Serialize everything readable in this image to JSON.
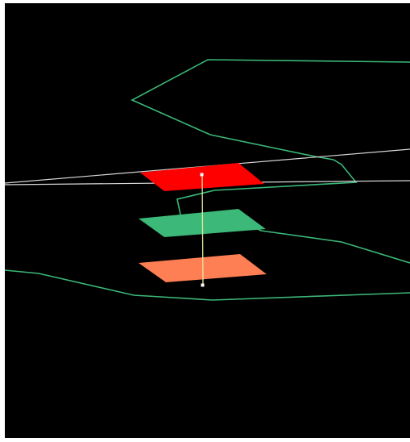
{
  "scene": {
    "background_color": "#000000",
    "frame_color": "#ffffff",
    "colors": {
      "boundary_line": "#3cb878",
      "reference_line": "#d8d8d8",
      "top_plane": "#ff0000",
      "middle_plane": "#3cb878",
      "bottom_plane": "#ff7f55",
      "vertical_connector": "#e8e8a0",
      "marker": "#ffffff"
    },
    "elements": {
      "upper_boundary": "green-outline-polyline",
      "middle_boundary": "green-outline-polyline",
      "lower_boundary": "green-outline-polyline",
      "reference_lines": "white-reference-lines",
      "planes": [
        "top-red-plane",
        "middle-green-plane",
        "bottom-orange-plane"
      ],
      "connector": "vertical-connector-line",
      "markers": [
        "top-point-marker",
        "bottom-point-marker"
      ]
    }
  }
}
